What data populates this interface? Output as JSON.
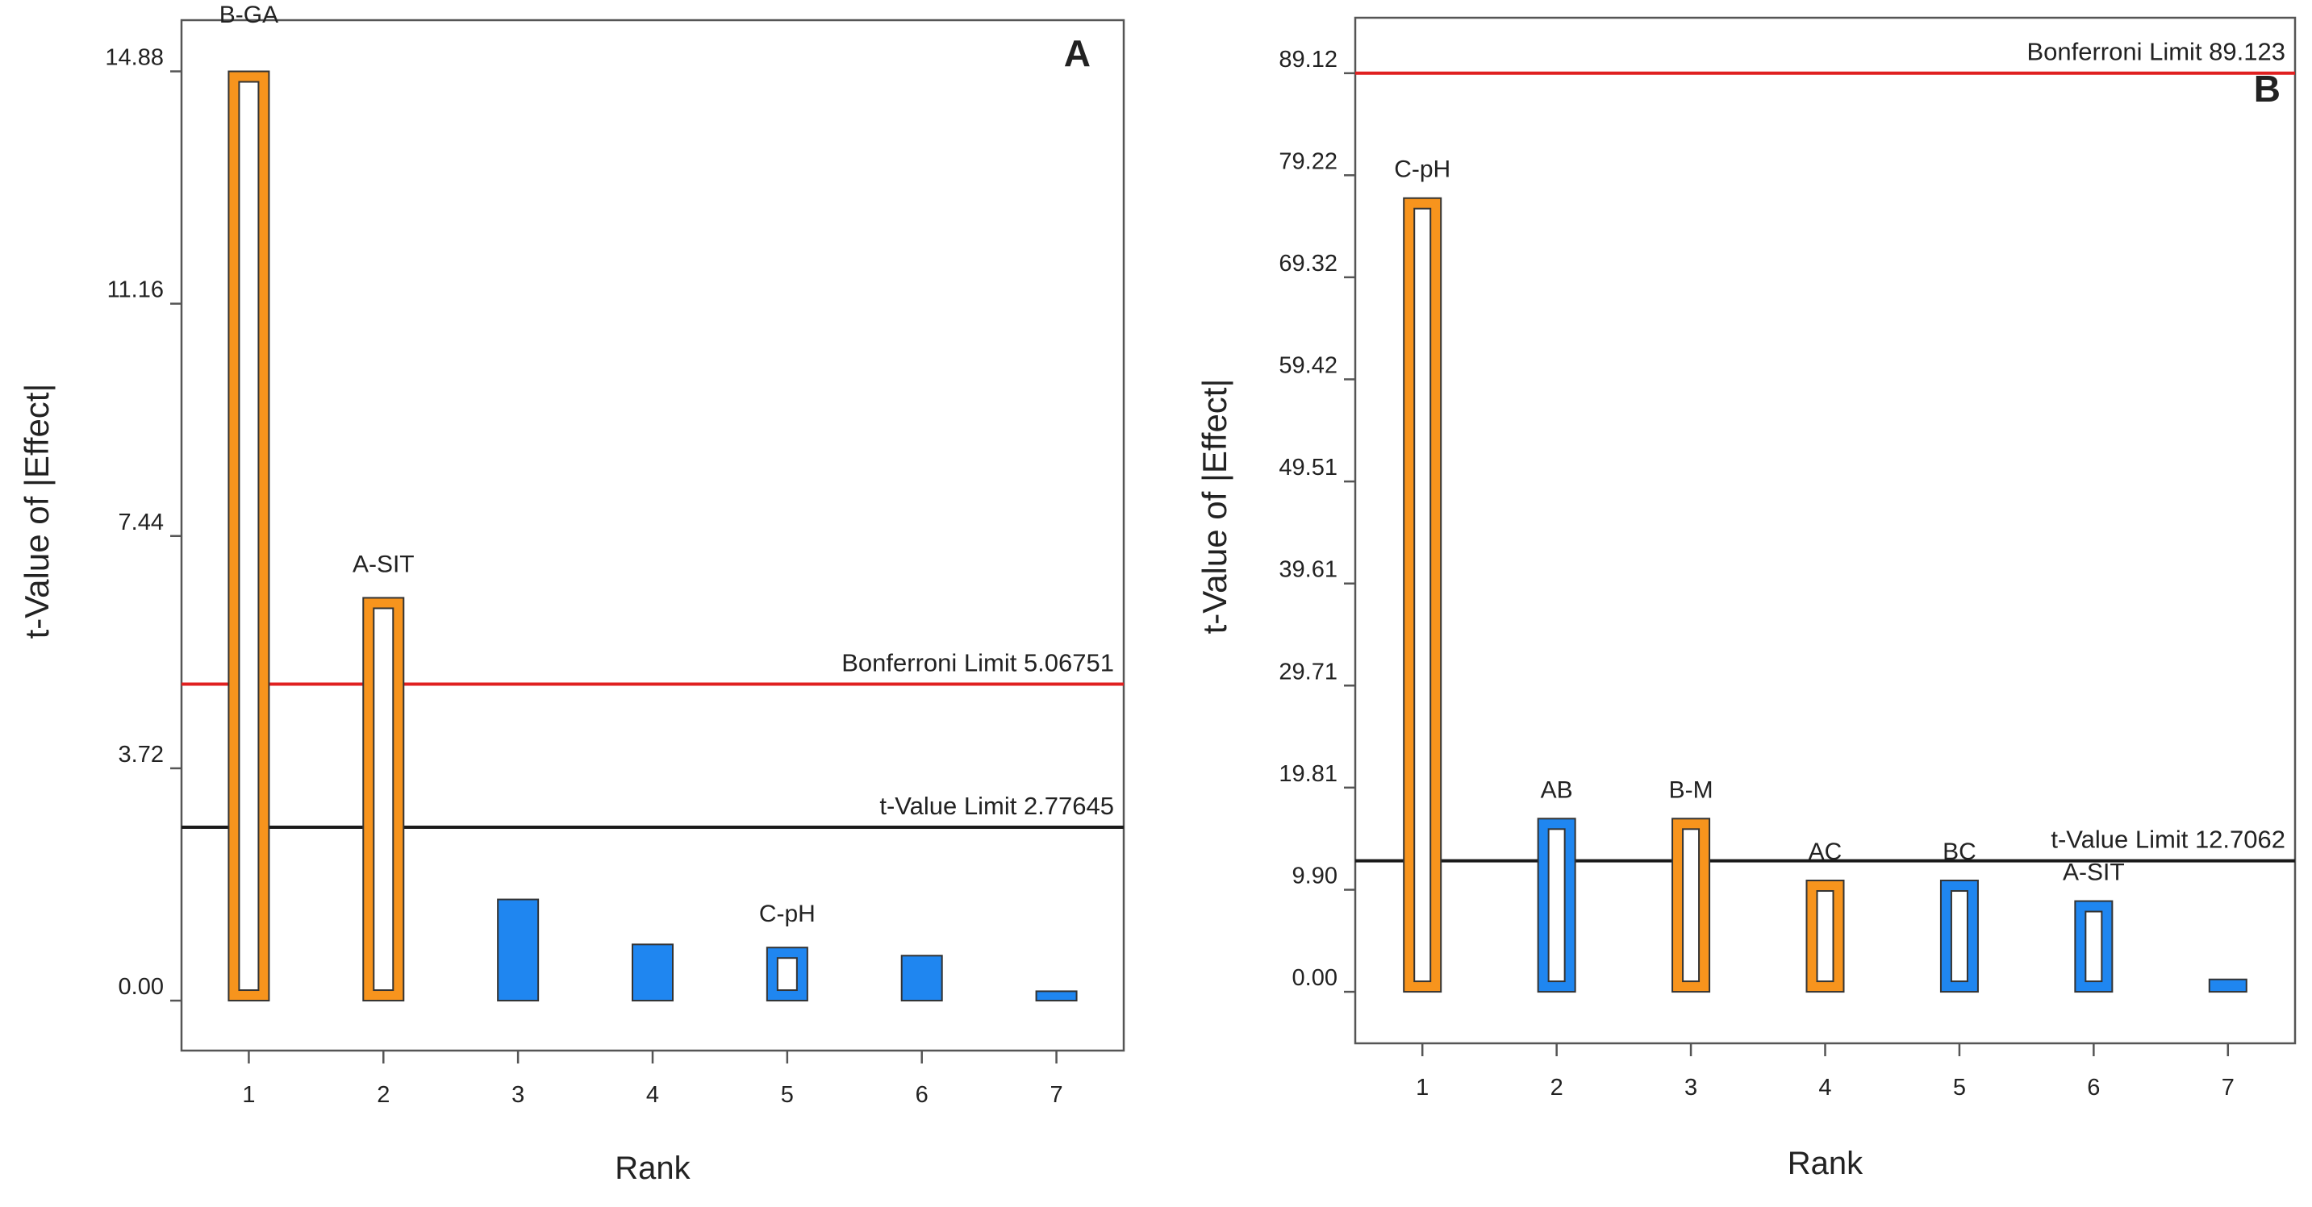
{
  "chart_data": [
    {
      "type": "bar",
      "panel_letter": "A",
      "xlabel": "Rank",
      "ylabel": "t-Value of |Effect|",
      "categories": [
        "1",
        "2",
        "3",
        "4",
        "5",
        "6",
        "7"
      ],
      "values": [
        14.88,
        6.45,
        1.62,
        0.9,
        0.85,
        0.72,
        0.15
      ],
      "bar_labels": [
        "B-GA",
        "A-SIT",
        "",
        "",
        "C-pH",
        "",
        ""
      ],
      "effect_sign": [
        "positive",
        "positive",
        "negative",
        "negative",
        "negative",
        "negative",
        "negative"
      ],
      "bar_style": [
        "outlined",
        "outlined",
        "solid",
        "solid",
        "outlined",
        "solid",
        "solid"
      ],
      "yticks": [
        "0.00",
        "3.72",
        "7.44",
        "11.16",
        "14.88"
      ],
      "ylim": [
        -0.8,
        15.7
      ],
      "reference_lines": [
        {
          "label": "Bonferroni Limit 5.06751",
          "value": 5.06751,
          "color": "#e02020"
        },
        {
          "label": "t-Value Limit 2.77645",
          "value": 2.77645,
          "color": "#1a1a1a"
        }
      ]
    },
    {
      "type": "bar",
      "panel_letter": "B",
      "xlabel": "Rank",
      "ylabel": "t-Value of |Effect|",
      "categories": [
        "1",
        "2",
        "3",
        "4",
        "5",
        "6",
        "7"
      ],
      "values": [
        77.0,
        16.8,
        16.8,
        10.8,
        10.8,
        8.8,
        1.2
      ],
      "bar_labels": [
        "C-pH",
        "AB",
        "B-M",
        "AC",
        "BC",
        "A-SIT",
        ""
      ],
      "effect_sign": [
        "positive",
        "negative",
        "positive",
        "positive",
        "negative",
        "negative",
        "negative"
      ],
      "bar_style": [
        "outlined",
        "outlined",
        "outlined",
        "outlined",
        "outlined",
        "outlined",
        "solid"
      ],
      "yticks": [
        "0.00",
        "9.90",
        "19.81",
        "29.71",
        "39.61",
        "49.51",
        "59.42",
        "69.32",
        "79.22",
        "89.12"
      ],
      "ylim": [
        -5.0,
        94.5
      ],
      "reference_lines": [
        {
          "label": "Bonferroni Limit 89.123",
          "value": 89.123,
          "color": "#e02020"
        },
        {
          "label": "t-Value Limit 12.7062",
          "value": 12.7062,
          "color": "#1a1a1a"
        }
      ]
    }
  ],
  "colors": {
    "positive": "#f7941d",
    "negative": "#1f86f0",
    "outline": "#333333"
  }
}
